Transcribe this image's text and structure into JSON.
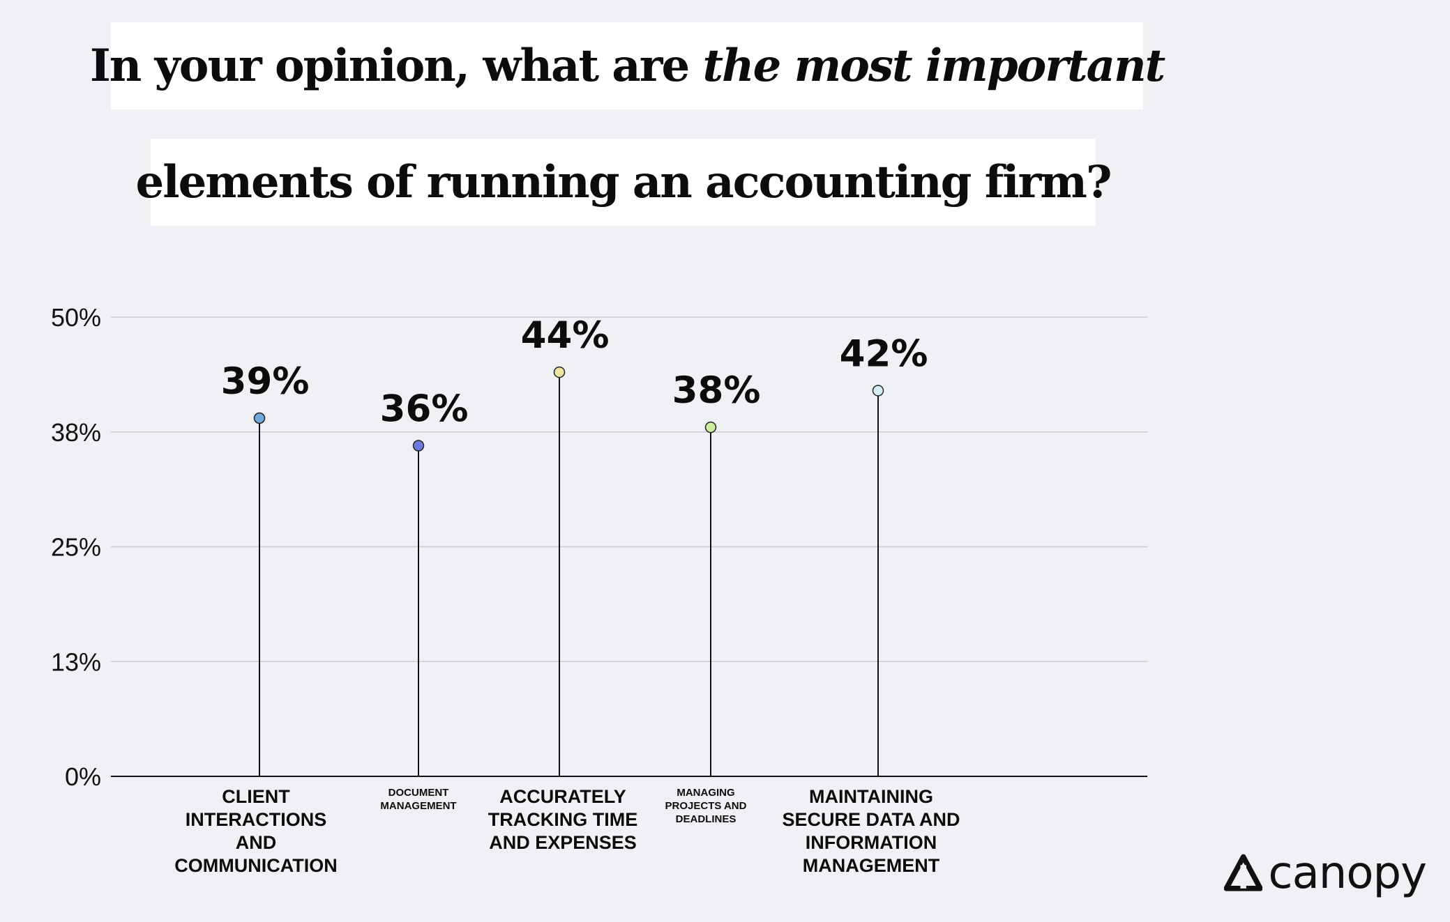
{
  "title": {
    "line1_regular": "In your opinion, what are ",
    "line1_italic": "the most important",
    "line2": "elements of running an accounting firm?"
  },
  "chart_data": {
    "type": "lollipop",
    "title": "In your opinion, what are the most important elements of running an accounting firm?",
    "categories": [
      "CLIENT INTERACTIONS AND COMMUNICATION",
      "DOCUMENT MANAGEMENT",
      "ACCURATELY TRACKING TIME AND EXPENSES",
      "MANAGING PROJECTS AND DEADLINES",
      "MAINTAINING SECURE DATA AND INFORMATION MANAGEMENT"
    ],
    "values": [
      39,
      36,
      44,
      38,
      42
    ],
    "value_labels": [
      "39%",
      "36%",
      "44%",
      "38%",
      "42%"
    ],
    "point_colors": [
      "#6fa8d8",
      "#6c78e0",
      "#ece5a2",
      "#cdeea0",
      "#d5eef6"
    ],
    "yticks": [
      "0%",
      "13%",
      "25%",
      "38%",
      "50%"
    ],
    "ylim": [
      0,
      50
    ],
    "grid": true,
    "xlabel": "",
    "ylabel": ""
  },
  "brand": {
    "name": "canopy"
  }
}
